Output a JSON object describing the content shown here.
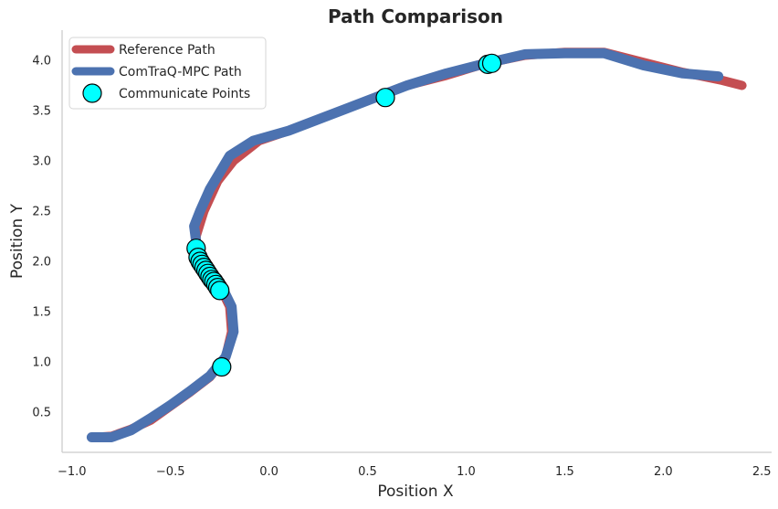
{
  "chart_data": {
    "type": "line",
    "title": "Path Comparison",
    "xlabel": "Position X",
    "ylabel": "Position Y",
    "xlim": [
      -1.05,
      2.55
    ],
    "ylim": [
      0.1,
      4.3
    ],
    "xticks": [
      -1.0,
      -0.5,
      0.0,
      0.5,
      1.0,
      1.5,
      2.0,
      2.5
    ],
    "xtick_labels": [
      "−1.0",
      "−0.5",
      "0.0",
      "0.5",
      "1.0",
      "1.5",
      "2.0",
      "2.5"
    ],
    "yticks": [
      0.5,
      1.0,
      1.5,
      2.0,
      2.5,
      3.0,
      3.5,
      4.0
    ],
    "ytick_labels": [
      "0.5",
      "1.0",
      "1.5",
      "2.0",
      "2.5",
      "3.0",
      "3.5",
      "4.0"
    ],
    "grid": false,
    "legend_position": "top-left",
    "series": [
      {
        "name": "Reference Path",
        "kind": "line",
        "color": "#c44e52",
        "x": [
          -0.88,
          -0.8,
          -0.7,
          -0.6,
          -0.5,
          -0.4,
          -0.3,
          -0.22,
          -0.19,
          -0.2,
          -0.25,
          -0.32,
          -0.37,
          -0.37,
          -0.33,
          -0.26,
          -0.18,
          -0.05,
          0.1,
          0.3,
          0.5,
          0.7,
          0.9,
          1.1,
          1.3,
          1.5,
          1.7,
          1.9,
          2.1,
          2.3,
          2.4
        ],
        "y": [
          0.25,
          0.26,
          0.33,
          0.42,
          0.56,
          0.7,
          0.85,
          1.05,
          1.3,
          1.55,
          1.75,
          1.9,
          2.05,
          2.25,
          2.5,
          2.8,
          3.0,
          3.2,
          3.3,
          3.45,
          3.6,
          3.75,
          3.85,
          3.97,
          4.05,
          4.08,
          4.08,
          3.98,
          3.88,
          3.8,
          3.75
        ]
      },
      {
        "name": "ComTraQ-MPC Path",
        "kind": "line",
        "color": "#4c72b0",
        "x": [
          -0.9,
          -0.8,
          -0.7,
          -0.6,
          -0.5,
          -0.4,
          -0.3,
          -0.22,
          -0.18,
          -0.19,
          -0.24,
          -0.31,
          -0.36,
          -0.38,
          -0.35,
          -0.3,
          -0.23,
          -0.2,
          -0.08,
          0.1,
          0.3,
          0.5,
          0.7,
          0.9,
          1.1,
          1.3,
          1.5,
          1.7,
          1.9,
          2.1,
          2.28
        ],
        "y": [
          0.25,
          0.25,
          0.32,
          0.44,
          0.57,
          0.71,
          0.86,
          1.05,
          1.3,
          1.55,
          1.75,
          1.9,
          2.05,
          2.35,
          2.5,
          2.72,
          2.95,
          3.05,
          3.2,
          3.3,
          3.45,
          3.6,
          3.75,
          3.87,
          3.97,
          4.06,
          4.07,
          4.07,
          3.95,
          3.87,
          3.84
        ]
      }
    ],
    "points": {
      "name": "Communicate Points",
      "color": "#00ffff",
      "edgecolor": "#000000",
      "x": [
        -0.24,
        -0.37,
        -0.36,
        -0.35,
        -0.34,
        -0.33,
        -0.32,
        -0.31,
        -0.3,
        -0.29,
        -0.28,
        -0.27,
        -0.26,
        -0.25,
        0.59,
        1.11,
        1.13
      ],
      "y": [
        0.95,
        2.13,
        2.04,
        2.0,
        1.97,
        1.94,
        1.91,
        1.88,
        1.85,
        1.82,
        1.8,
        1.77,
        1.74,
        1.71,
        3.63,
        3.96,
        3.97
      ]
    }
  }
}
